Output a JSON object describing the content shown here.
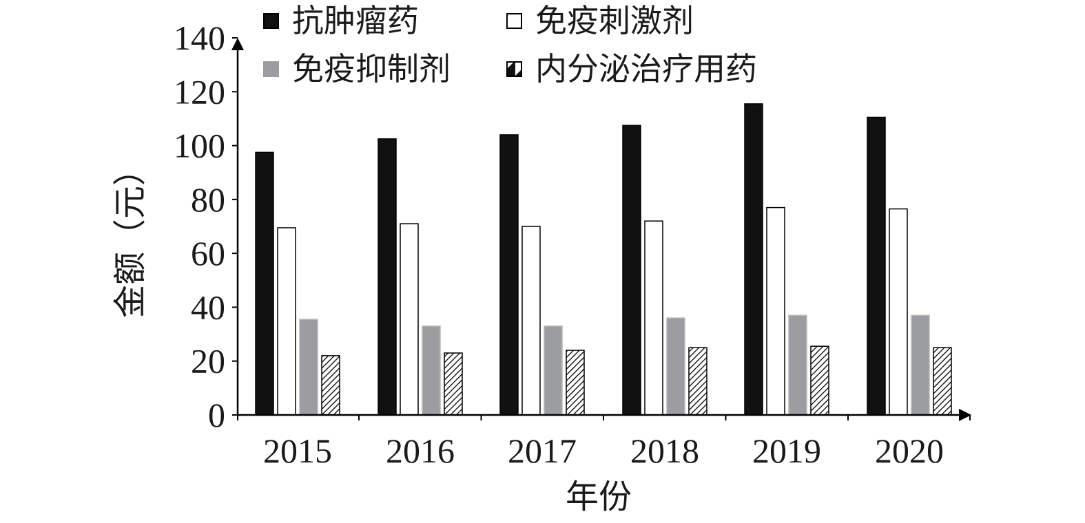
{
  "chart_data": {
    "type": "bar",
    "categories": [
      "2015",
      "2016",
      "2017",
      "2018",
      "2019",
      "2020"
    ],
    "series": [
      {
        "name": "抗肿瘤药",
        "color": "#111111",
        "pattern": "solid",
        "values": [
          97.5,
          102.5,
          104,
          107.5,
          115.5,
          110.5
        ]
      },
      {
        "name": "免疫刺激剂",
        "color": "#ffffff",
        "pattern": "hollow",
        "values": [
          69.5,
          71,
          70,
          72,
          77,
          76.5
        ]
      },
      {
        "name": "免疫抑制剂",
        "color": "#9c9da0",
        "pattern": "solid",
        "values": [
          35.5,
          33,
          33,
          36,
          37,
          37
        ]
      },
      {
        "name": "内分泌治疗用药",
        "color": "#ffffff",
        "pattern": "hatch",
        "values": [
          22,
          23,
          24,
          25,
          25.5,
          25
        ]
      }
    ],
    "xlabel": "年份",
    "ylabel": "金额（元）",
    "ylim": [
      0,
      140
    ],
    "yticks": [
      "0",
      "20",
      "40",
      "60",
      "80",
      "100",
      "120",
      "140"
    ],
    "grid": false,
    "legend_position": "top"
  }
}
